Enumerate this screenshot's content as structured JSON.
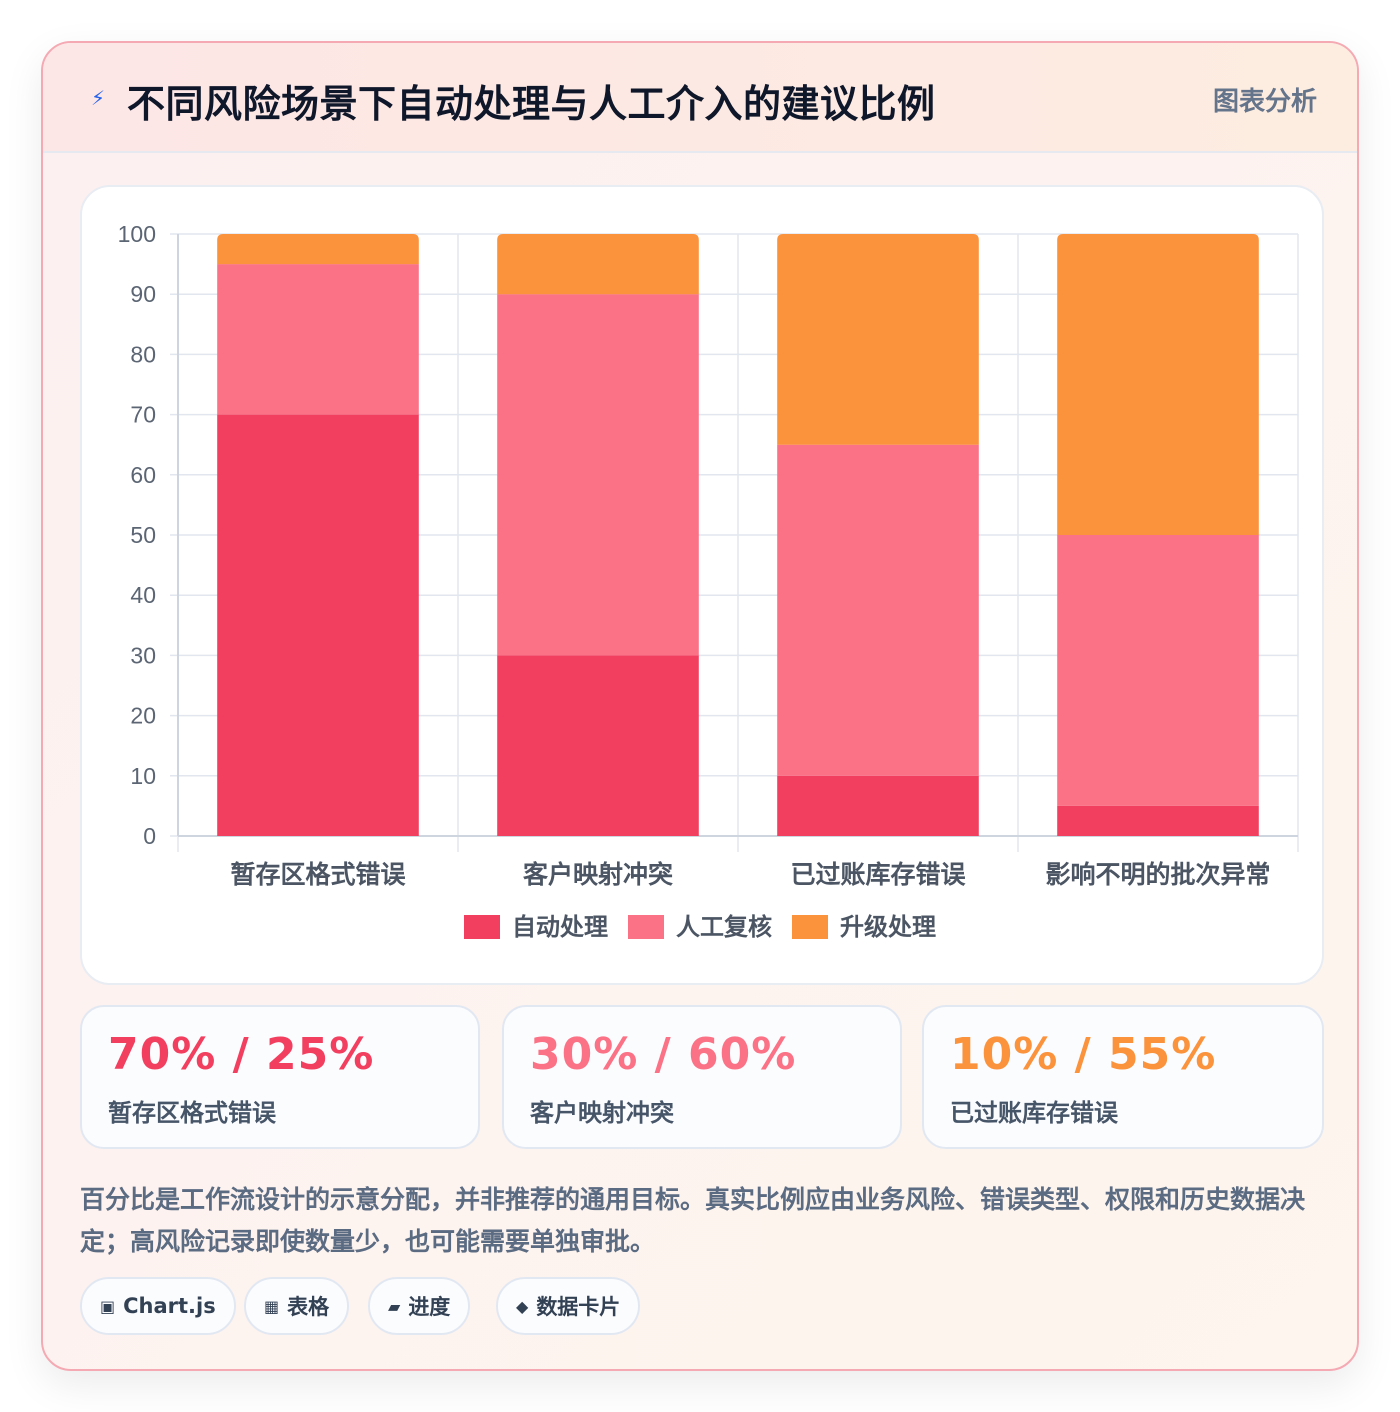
{
  "header": {
    "title": "不同风险场景下自动处理与人工介入的建议比例",
    "tag": "图表分析",
    "icon": "lightning-icon"
  },
  "chart_data": {
    "type": "bar",
    "stacked": true,
    "categories": [
      "暂存区格式错误",
      "客户映射冲突",
      "已过账库存错误",
      "影响不明的批次异常"
    ],
    "series": [
      {
        "name": "自动处理",
        "color": "#f23f5f",
        "values": [
          70,
          30,
          10,
          5
        ]
      },
      {
        "name": "人工复核",
        "color": "#fb7185",
        "values": [
          25,
          60,
          55,
          45
        ]
      },
      {
        "name": "升级处理",
        "color": "#fb923c",
        "values": [
          5,
          10,
          35,
          50
        ]
      }
    ],
    "ylim": [
      0,
      100
    ],
    "yticks": [
      0,
      10,
      20,
      30,
      40,
      50,
      60,
      70,
      80,
      90,
      100
    ],
    "grid": true,
    "legend": "bottom"
  },
  "stats": [
    {
      "value": "70% / 25%",
      "label": "暂存区格式错误",
      "color": "#f23f5f"
    },
    {
      "value": "30% / 60%",
      "label": "客户映射冲突",
      "color": "#fb7185"
    },
    {
      "value": "10% / 55%",
      "label": "已过账库存错误",
      "color": "#fb923c"
    }
  ],
  "note": "百分比是工作流设计的示意分配，并非推荐的通用目标。真实比例应由业务风险、错误类型、权限和历史数据决定；高风险记录即使数量少，也可能需要单独审批。",
  "chips": [
    {
      "icon": "▣",
      "icon_name": "chart-icon",
      "label": "Chart.js"
    },
    {
      "icon": "▦",
      "icon_name": "table-icon",
      "label": "表格"
    },
    {
      "icon": "▰",
      "icon_name": "progress-icon",
      "label": "进度"
    },
    {
      "icon": "◆",
      "icon_name": "card-icon",
      "label": "数据卡片"
    }
  ]
}
